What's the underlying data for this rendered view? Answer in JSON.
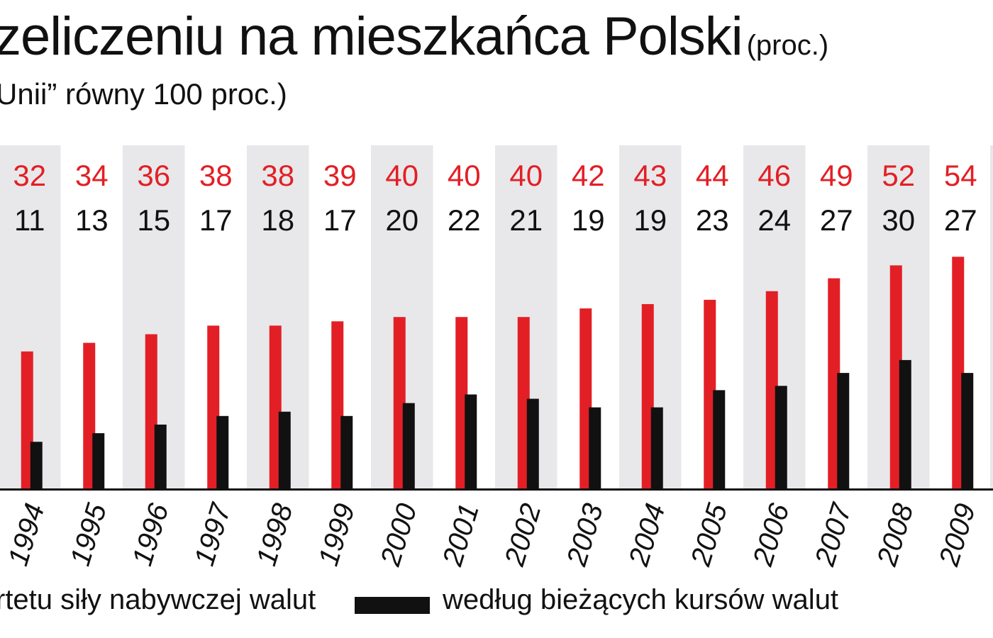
{
  "title": "zeliczeniu na mieszkańca Polski",
  "title_unit": "(proc.)",
  "subtitle": "Unii” równy 100 proc.)",
  "colors": {
    "ppp": "#e31f26",
    "fx": "#111111",
    "band": "#e8e8ea",
    "axis": "#111111"
  },
  "chart_data": {
    "type": "bar",
    "categories": [
      "1994",
      "1995",
      "1996",
      "1997",
      "1998",
      "1999",
      "2000",
      "2001",
      "2002",
      "2003",
      "2004",
      "2005",
      "2006",
      "2007",
      "2008",
      "2009"
    ],
    "series": [
      {
        "name": "rtetu siły nabywczej walut",
        "values": [
          32,
          34,
          36,
          38,
          38,
          39,
          40,
          40,
          40,
          42,
          43,
          44,
          46,
          49,
          52,
          54
        ]
      },
      {
        "name": "według bieżących kursów walut",
        "values": [
          11,
          13,
          15,
          17,
          18,
          17,
          20,
          22,
          21,
          19,
          19,
          23,
          24,
          27,
          30,
          27
        ]
      }
    ],
    "ylim": [
      0,
      80
    ],
    "grid": false,
    "alternating_bands": true,
    "legend_position": "bottom"
  }
}
